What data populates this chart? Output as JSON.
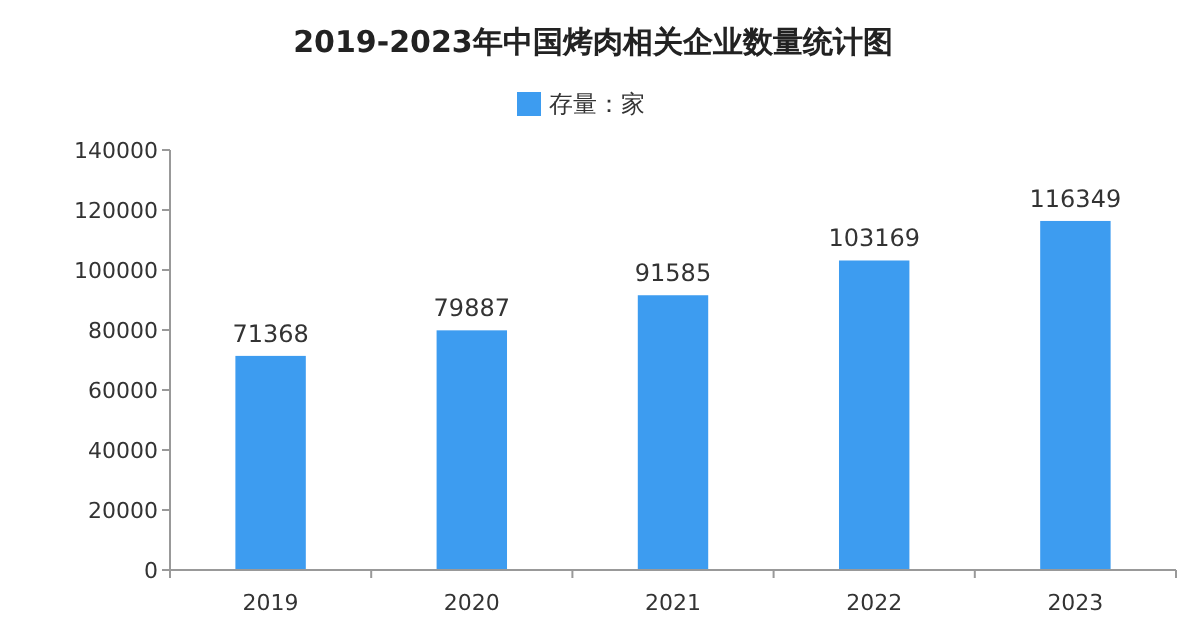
{
  "chart_data": {
    "type": "bar",
    "title": "2019-2023年中国烤肉相关企业数量统计图",
    "categories": [
      "2019",
      "2020",
      "2021",
      "2022",
      "2023"
    ],
    "series": [
      {
        "name": "存量：家",
        "color": "#3d9cf0",
        "values": [
          71368,
          79887,
          91585,
          103169,
          116349
        ]
      }
    ],
    "ylim": [
      0,
      140000
    ],
    "yticks": [
      0,
      20000,
      40000,
      60000,
      80000,
      100000,
      120000,
      140000
    ],
    "data_labels": true,
    "legend": "top",
    "grid": false
  }
}
